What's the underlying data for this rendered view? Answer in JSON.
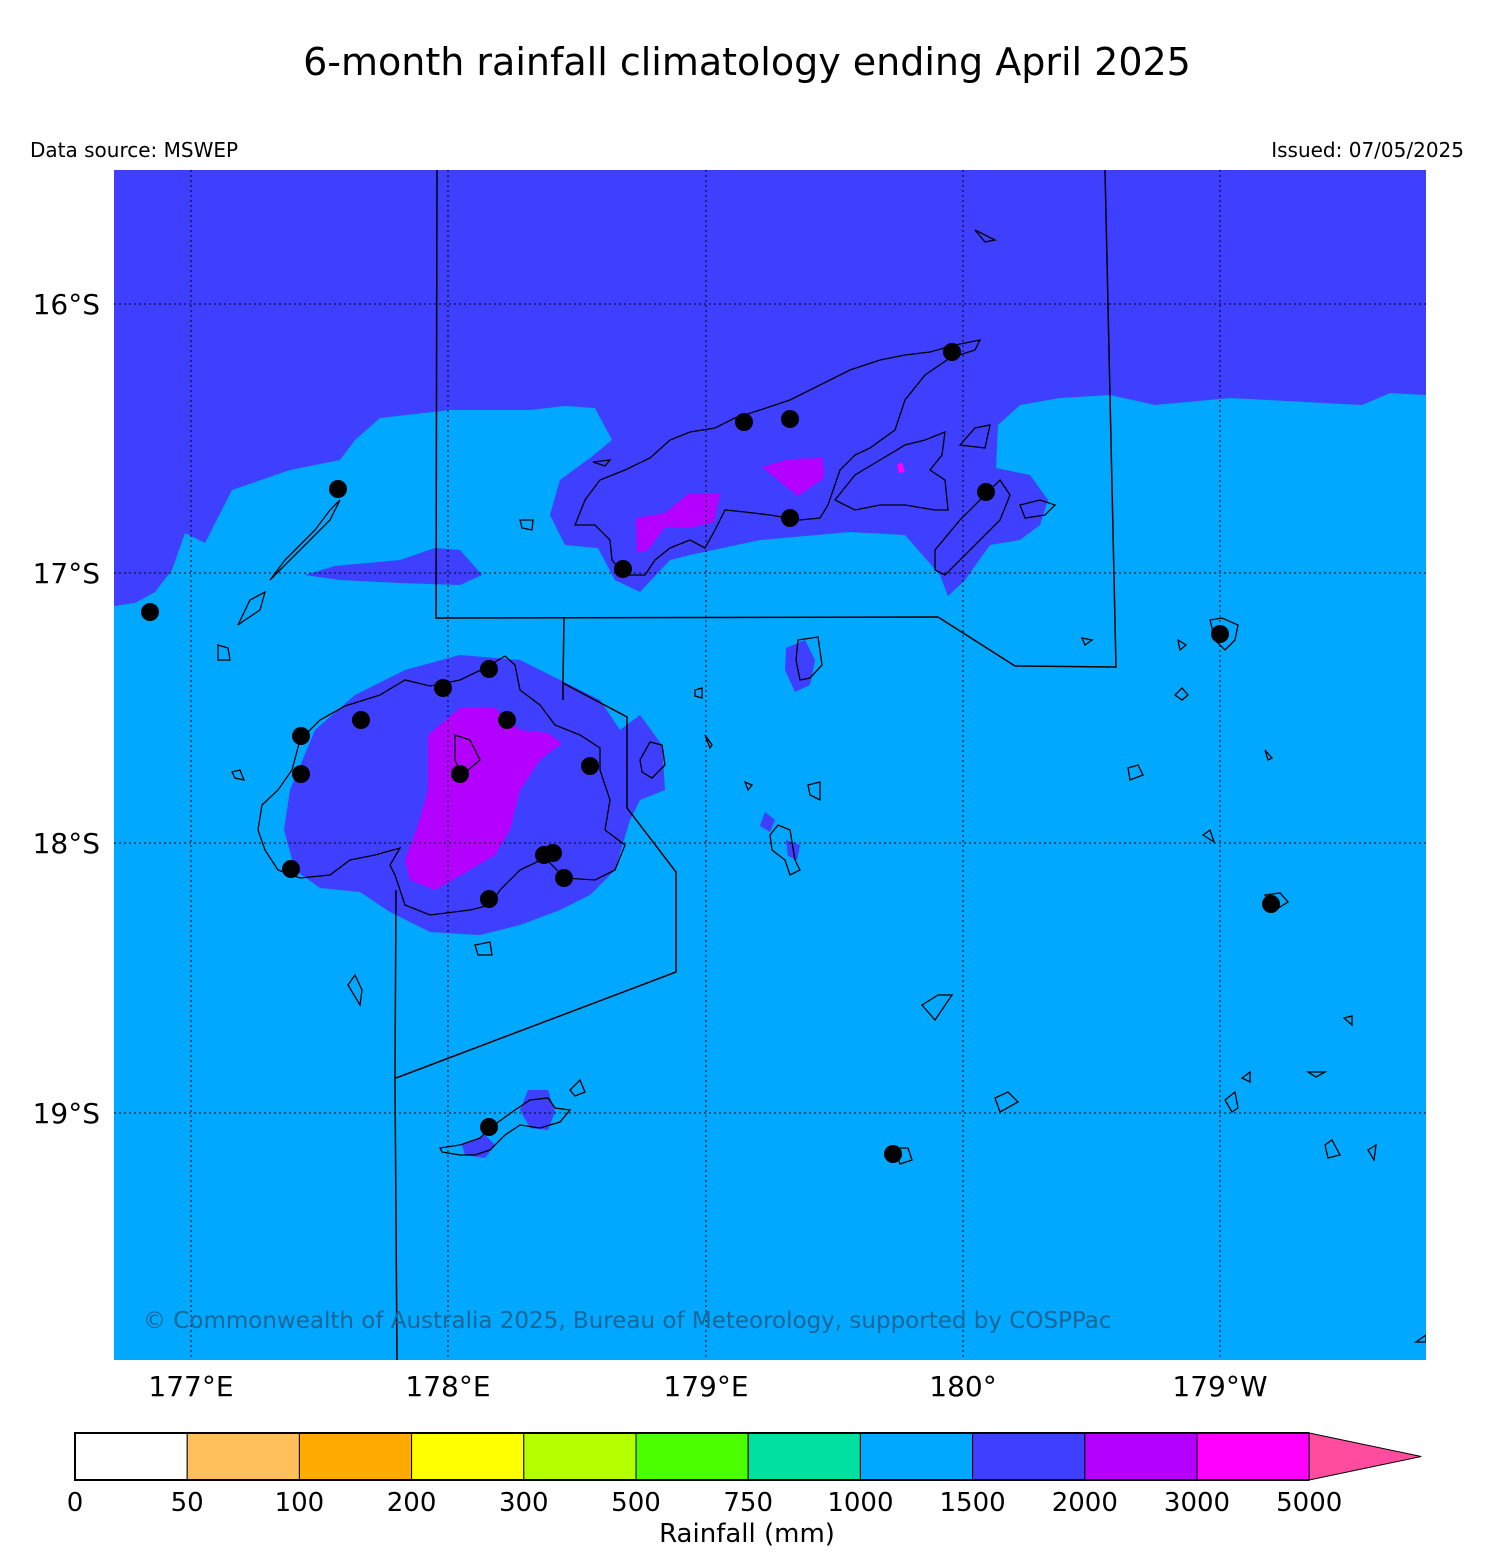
{
  "title": "6-month rainfall climatology ending April 2025",
  "data_source": "Data source: MSWEP",
  "issued": "Issued: 07/05/2025",
  "copyright": "© Commonwealth of Australia 2025, Bureau of Meteorology, supported by COSPPac",
  "axes": {
    "longitude_labels": [
      "177°E",
      "178°E",
      "179°E",
      "180°",
      "179°W"
    ],
    "latitude_labels": [
      "16°S",
      "17°S",
      "18°S",
      "19°S"
    ]
  },
  "colorbar": {
    "label": "Rainfall (mm)",
    "ticks": [
      "0",
      "50",
      "100",
      "200",
      "300",
      "500",
      "750",
      "1000",
      "1500",
      "2000",
      "3000",
      "5000"
    ],
    "colors": [
      "#ffffff",
      "#ffbf5a",
      "#ffaa00",
      "#ffff00",
      "#b3ff00",
      "#4cff00",
      "#00e0a0",
      "#00a8ff",
      "#3f3fff",
      "#b300ff",
      "#ff00ff",
      "#ff4c9e"
    ],
    "extend": "max"
  },
  "legend_colors": {
    "ocean_1000_1500": "#00a8ff",
    "range_1500_2000": "#3f3fff",
    "range_2000_3000": "#b300ff",
    "range_3000_5000": "#ff00ff"
  },
  "stations_shown": true
}
